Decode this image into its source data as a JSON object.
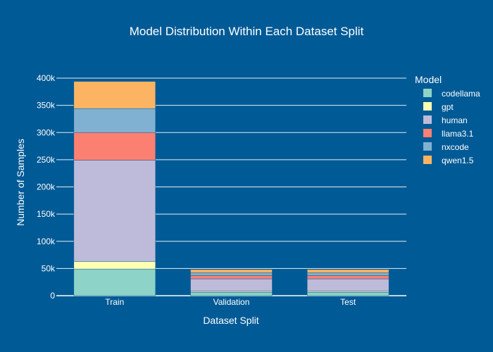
{
  "chart_data": {
    "type": "bar",
    "stacked": true,
    "title": "Model Distribution Within Each Dataset Split",
    "xlabel": "Dataset Split",
    "ylabel": "Number of Samples",
    "categories": [
      "Train",
      "Validation",
      "Test"
    ],
    "ylim": [
      0,
      400000
    ],
    "yticks": [
      0,
      50000,
      100000,
      150000,
      200000,
      250000,
      300000,
      350000,
      400000
    ],
    "ytick_labels": [
      "0",
      "50k",
      "100k",
      "150k",
      "200k",
      "250k",
      "300k",
      "350k",
      "400k"
    ],
    "grid": true,
    "legend_title": "Model",
    "legend_position": "right",
    "series": [
      {
        "name": "codellama",
        "color": "#8dd3c7",
        "values": [
          49000,
          6000,
          6000
        ]
      },
      {
        "name": "gpt",
        "color": "#ffffb3",
        "values": [
          14000,
          2000,
          2000
        ]
      },
      {
        "name": "human",
        "color": "#bebada",
        "values": [
          186000,
          23000,
          23000
        ]
      },
      {
        "name": "llama3.1",
        "color": "#fb8072",
        "values": [
          51000,
          6000,
          6000
        ]
      },
      {
        "name": "nxcode",
        "color": "#80b1d3",
        "values": [
          44000,
          5000,
          5000
        ]
      },
      {
        "name": "qwen1.5",
        "color": "#fdb462",
        "values": [
          50000,
          6000,
          6000
        ]
      }
    ]
  },
  "colors": {
    "background": "#005a96",
    "gridline": "#ffffff",
    "text": "#ffffff"
  }
}
